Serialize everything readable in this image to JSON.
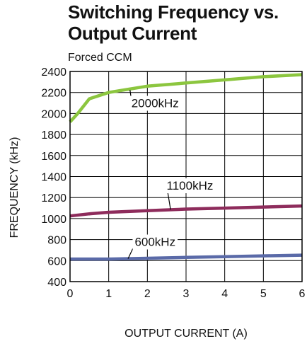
{
  "chart_data": {
    "type": "line",
    "title": "Switching Frequency vs. Output Current",
    "subtitle": "Forced CCM",
    "xlabel": "OUTPUT CURRENT (A)",
    "ylabel": "FREQUENCY (kHz)",
    "xlim": [
      0,
      6
    ],
    "ylim": [
      400,
      2400
    ],
    "xticks": [
      "0",
      "1",
      "2",
      "3",
      "4",
      "5",
      "6"
    ],
    "yticks": [
      "400",
      "600",
      "800",
      "1000",
      "1200",
      "1400",
      "1600",
      "1800",
      "2000",
      "2200",
      "2400"
    ],
    "grid": true,
    "legend": "none",
    "series": [
      {
        "name": "2000kHz",
        "color": "#8cc63f",
        "x": [
          0,
          0.2,
          0.5,
          1,
          1.5,
          2,
          3,
          4,
          5,
          6
        ],
        "y": [
          1920,
          2000,
          2140,
          2200,
          2230,
          2260,
          2290,
          2320,
          2350,
          2370
        ]
      },
      {
        "name": "1100kHz",
        "color": "#8e2c5c",
        "x": [
          0,
          0.5,
          1,
          2,
          3,
          4,
          5,
          6
        ],
        "y": [
          1025,
          1045,
          1060,
          1075,
          1090,
          1100,
          1110,
          1120
        ]
      },
      {
        "name": "600kHz",
        "color": "#5a6aa8",
        "x": [
          0,
          1,
          2,
          3,
          4,
          5,
          6
        ],
        "y": [
          615,
          615,
          622,
          630,
          638,
          645,
          652
        ]
      }
    ],
    "annotations": [
      {
        "text": "2000kHz",
        "series": 0,
        "at_x": 1.55,
        "at_y": 2225,
        "label_x": 2.2,
        "label_y": 2060
      },
      {
        "text": "1100kHz",
        "series": 1,
        "at_x": 2.6,
        "at_y": 1085,
        "label_x": 3.1,
        "label_y": 1275
      },
      {
        "text": "600kHz",
        "series": 2,
        "at_x": 1.5,
        "at_y": 618,
        "label_x": 2.2,
        "label_y": 740
      }
    ]
  }
}
